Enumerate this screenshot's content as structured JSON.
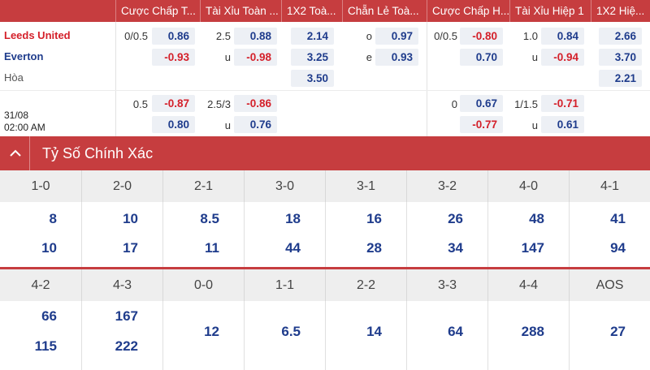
{
  "header": {
    "columns": [
      "Cược Chấp T...",
      "Tài Xỉu Toàn ...",
      "1X2 Toà...",
      "Chẵn Lẻ Toà...",
      "Cược Chấp H...",
      "Tài Xỉu Hiệp 1",
      "1X2 Hiệ..."
    ]
  },
  "match": {
    "home": "Leeds United",
    "away": "Everton",
    "draw": "Hòa",
    "date": "31/08",
    "time": "02:00 AM"
  },
  "odds_main": {
    "hdp_line": "0/0.5",
    "hdp_home": "0.86",
    "hdp_away": "-0.93",
    "ou_line": "2.5",
    "ou_over": "0.88",
    "ou_u": "u",
    "ou_under": "-0.98",
    "x12_home": "2.14",
    "x12_away": "3.25",
    "x12_draw": "3.50",
    "oe_o": "o",
    "oe_odd": "0.97",
    "oe_e": "e",
    "oe_even": "0.93",
    "h1_hdp_line": "0/0.5",
    "h1_hdp_home": "-0.80",
    "h1_hdp_away": "0.70",
    "h1_ou_line": "1.0",
    "h1_ou_over": "0.84",
    "h1_ou_u": "u",
    "h1_ou_under": "-0.94",
    "h1_x12_home": "2.66",
    "h1_x12_away": "3.70",
    "h1_x12_draw": "2.21"
  },
  "odds_alt": {
    "hdp_line": "0.5",
    "hdp_home": "-0.87",
    "hdp_away": "0.80",
    "ou_line": "2.5/3",
    "ou_over": "-0.86",
    "ou_u": "u",
    "ou_under": "0.76",
    "h1_hdp_line": "0",
    "h1_hdp_home": "0.67",
    "h1_hdp_away": "-0.77",
    "h1_ou_line": "1/1.5",
    "h1_ou_over": "-0.71",
    "h1_ou_u": "u",
    "h1_ou_under": "0.61"
  },
  "exact_score": {
    "title": "Tỷ Số Chính Xác",
    "row1": [
      {
        "score": "1-0",
        "home": "8",
        "away": "10"
      },
      {
        "score": "2-0",
        "home": "10",
        "away": "17"
      },
      {
        "score": "2-1",
        "home": "8.5",
        "away": "11"
      },
      {
        "score": "3-0",
        "home": "18",
        "away": "44"
      },
      {
        "score": "3-1",
        "home": "16",
        "away": "28"
      },
      {
        "score": "3-2",
        "home": "26",
        "away": "34"
      },
      {
        "score": "4-0",
        "home": "48",
        "away": "147"
      },
      {
        "score": "4-1",
        "home": "41",
        "away": "94"
      }
    ],
    "row2": [
      {
        "score": "4-2",
        "home": "66",
        "away": "115"
      },
      {
        "score": "4-3",
        "home": "167",
        "away": "222"
      },
      {
        "score": "0-0",
        "value": "12"
      },
      {
        "score": "1-1",
        "value": "6.5"
      },
      {
        "score": "2-2",
        "value": "14"
      },
      {
        "score": "3-3",
        "value": "64"
      },
      {
        "score": "4-4",
        "value": "288"
      },
      {
        "score": "AOS",
        "value": "27"
      }
    ]
  },
  "colors": {
    "accent": "#c63d3f",
    "positive": "#1f3c8c",
    "negative": "#d4202a"
  },
  "icons": {
    "section_toggle": "chevron-up-icon"
  }
}
